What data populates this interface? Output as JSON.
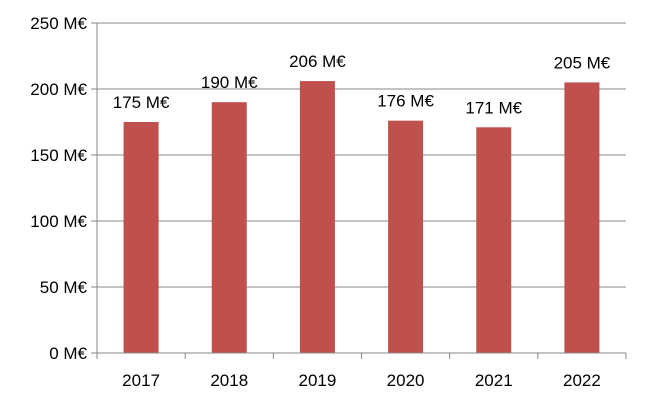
{
  "chart_data": {
    "type": "bar",
    "title": "",
    "xlabel": "",
    "ylabel": "",
    "categories": [
      "2017",
      "2018",
      "2019",
      "2020",
      "2021",
      "2022"
    ],
    "values": [
      175,
      190,
      206,
      176,
      171,
      205
    ],
    "data_labels": [
      "175 M€",
      "190 M€",
      "206 M€",
      "176 M€",
      "171 M€",
      "205 M€"
    ],
    "ylim": [
      0,
      250
    ],
    "yticks": [
      0,
      50,
      100,
      150,
      200,
      250
    ],
    "ytick_labels": [
      "0 M€",
      "50 M€",
      "100 M€",
      "150 M€",
      "200 M€",
      "250 M€"
    ],
    "grid": true,
    "legend": "none",
    "colors": {
      "bar": "#c0504d",
      "grid": "#878787",
      "axis": "#878787"
    }
  }
}
